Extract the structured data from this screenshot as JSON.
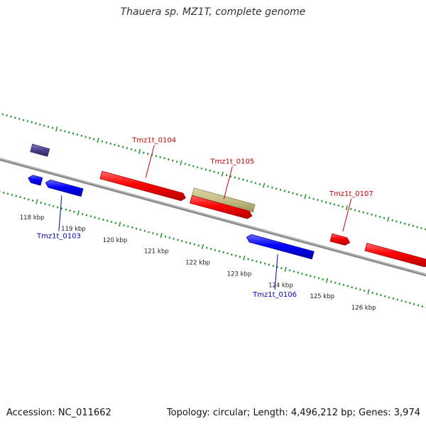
{
  "title": "Thauera sp. MZ1T, complete genome",
  "footer": {
    "accession": "Accession: NC_011662",
    "summary": "Topology: circular; Length: 4,496,212 bp; Genes: 3,974"
  },
  "colors": {
    "forward_gene": "#ff0000",
    "reverse_gene": "#0000ff",
    "rna": "#c6be85",
    "pseudo": "#4b3f8f",
    "backbone": "#8a8a8a",
    "ticks": "#22962a",
    "label_forward": "#c80000",
    "label_reverse": "#0000b4"
  },
  "scale": {
    "unit": "kbp",
    "ticks": [
      {
        "value": 118,
        "label": "118 kbp"
      },
      {
        "value": 119,
        "label": "119 kbp"
      },
      {
        "value": 120,
        "label": "120 kbp"
      },
      {
        "value": 121,
        "label": "121 kbp"
      },
      {
        "value": 122,
        "label": "122 kbp"
      },
      {
        "value": 123,
        "label": "123 kbp"
      },
      {
        "value": 124,
        "label": "124 kbp"
      },
      {
        "value": 125,
        "label": "125 kbp"
      },
      {
        "value": 126,
        "label": "126 kbp"
      }
    ]
  },
  "features": [
    {
      "name": "",
      "start": 117.55,
      "end": 117.96,
      "strand": "forward",
      "kind": "pseudo"
    },
    {
      "name": "",
      "start": 117.66,
      "end": 117.98,
      "strand": "reverse",
      "kind": "gene"
    },
    {
      "name": "Tmz1t_0103",
      "start": 118.08,
      "end": 118.96,
      "strand": "reverse",
      "kind": "gene",
      "labeled": true
    },
    {
      "name": "Tmz1t_0104",
      "start": 119.28,
      "end": 121.32,
      "strand": "forward",
      "kind": "gene",
      "labeled": true
    },
    {
      "name": "",
      "start": 121.45,
      "end": 122.92,
      "strand": "forward",
      "kind": "rna"
    },
    {
      "name": "Tmz1t_0105",
      "start": 121.45,
      "end": 122.92,
      "strand": "forward",
      "kind": "gene",
      "labeled": true
    },
    {
      "name": "Tmz1t_0106",
      "start": 122.93,
      "end": 124.53,
      "strand": "reverse",
      "kind": "gene",
      "labeled": true
    },
    {
      "name": "Tmz1t_0107",
      "start": 124.83,
      "end": 125.28,
      "strand": "forward",
      "kind": "gene",
      "labeled": true
    },
    {
      "name": "",
      "start": 125.67,
      "end": 127.2,
      "strand": "forward",
      "kind": "gene"
    }
  ]
}
